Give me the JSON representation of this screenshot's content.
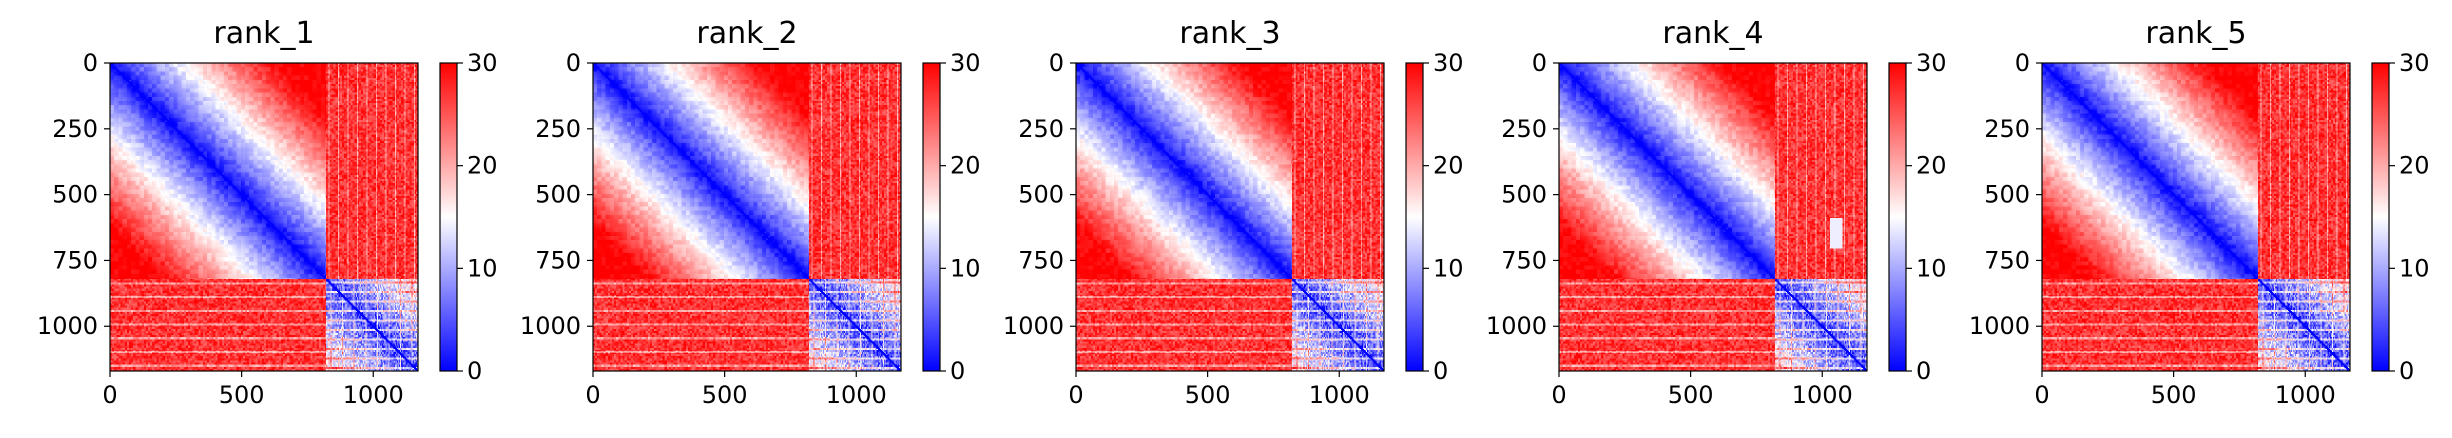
{
  "chart_data": [
    {
      "type": "heatmap",
      "title": "rank_1",
      "x_range": [
        0,
        1170
      ],
      "y_range": [
        0,
        1170
      ],
      "y_inverted": true,
      "xticks": [
        0,
        500,
        1000
      ],
      "yticks": [
        0,
        250,
        500,
        750,
        1000
      ],
      "block_split": 820,
      "colorbar": {
        "range": [
          0,
          30
        ],
        "ticks": [
          0,
          10,
          20,
          30
        ],
        "colormap": "bwr"
      },
      "grid": false
    },
    {
      "type": "heatmap",
      "title": "rank_2",
      "x_range": [
        0,
        1170
      ],
      "y_range": [
        0,
        1170
      ],
      "y_inverted": true,
      "xticks": [
        0,
        500,
        1000
      ],
      "yticks": [
        0,
        250,
        500,
        750,
        1000
      ],
      "block_split": 820,
      "colorbar": {
        "range": [
          0,
          30
        ],
        "ticks": [
          0,
          10,
          20,
          30
        ],
        "colormap": "bwr"
      },
      "grid": false
    },
    {
      "type": "heatmap",
      "title": "rank_3",
      "x_range": [
        0,
        1170
      ],
      "y_range": [
        0,
        1170
      ],
      "y_inverted": true,
      "xticks": [
        0,
        500,
        1000
      ],
      "yticks": [
        0,
        250,
        500,
        750,
        1000
      ],
      "block_split": 820,
      "colorbar": {
        "range": [
          0,
          30
        ],
        "ticks": [
          0,
          10,
          20,
          30
        ],
        "colormap": "bwr"
      },
      "grid": false
    },
    {
      "type": "heatmap",
      "title": "rank_4",
      "x_range": [
        0,
        1170
      ],
      "y_range": [
        0,
        1170
      ],
      "y_inverted": true,
      "xticks": [
        0,
        500,
        1000
      ],
      "yticks": [
        0,
        250,
        500,
        750,
        1000
      ],
      "block_split": 820,
      "colorbar": {
        "range": [
          0,
          30
        ],
        "ticks": [
          0,
          10,
          20,
          30
        ],
        "colormap": "bwr"
      },
      "grid": false
    },
    {
      "type": "heatmap",
      "title": "rank_5",
      "x_range": [
        0,
        1170
      ],
      "y_range": [
        0,
        1170
      ],
      "y_inverted": true,
      "xticks": [
        0,
        500,
        1000
      ],
      "yticks": [
        0,
        250,
        500,
        750,
        1000
      ],
      "block_split": 820,
      "colorbar": {
        "range": [
          0,
          30
        ],
        "ticks": [
          0,
          10,
          20,
          30
        ],
        "colormap": "bwr"
      },
      "grid": false
    }
  ]
}
